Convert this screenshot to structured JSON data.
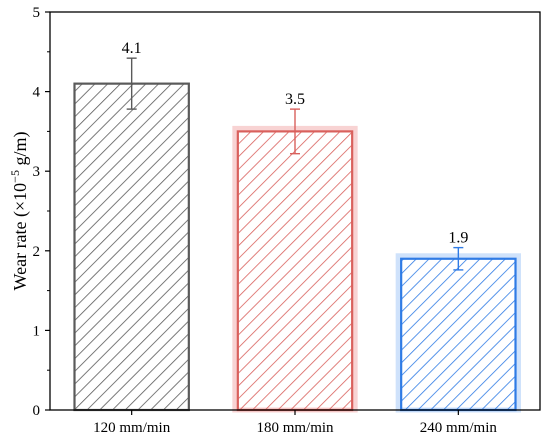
{
  "chart_data": {
    "type": "bar",
    "title": "",
    "xlabel": "",
    "ylabel_main": "Wear rate (×10",
    "ylabel_exp": "−5",
    "ylabel_unit": " g/m)",
    "categories": [
      "120 mm/min",
      "180 mm/min",
      "240 mm/min"
    ],
    "values": [
      4.1,
      3.5,
      1.9
    ],
    "value_labels": [
      "4.1",
      "3.5",
      "1.9"
    ],
    "errors": [
      0.32,
      0.28,
      0.14
    ],
    "ylim": [
      0,
      5
    ],
    "yticks": [
      "0",
      "1",
      "2",
      "3",
      "4",
      "5"
    ],
    "grid": false,
    "bar_colors": [
      "#5a5a5a",
      "#d9605c",
      "#2f7be5"
    ],
    "bar_glow": [
      "#ffffff",
      "#f8d3d3",
      "#cfe2fb"
    ]
  }
}
